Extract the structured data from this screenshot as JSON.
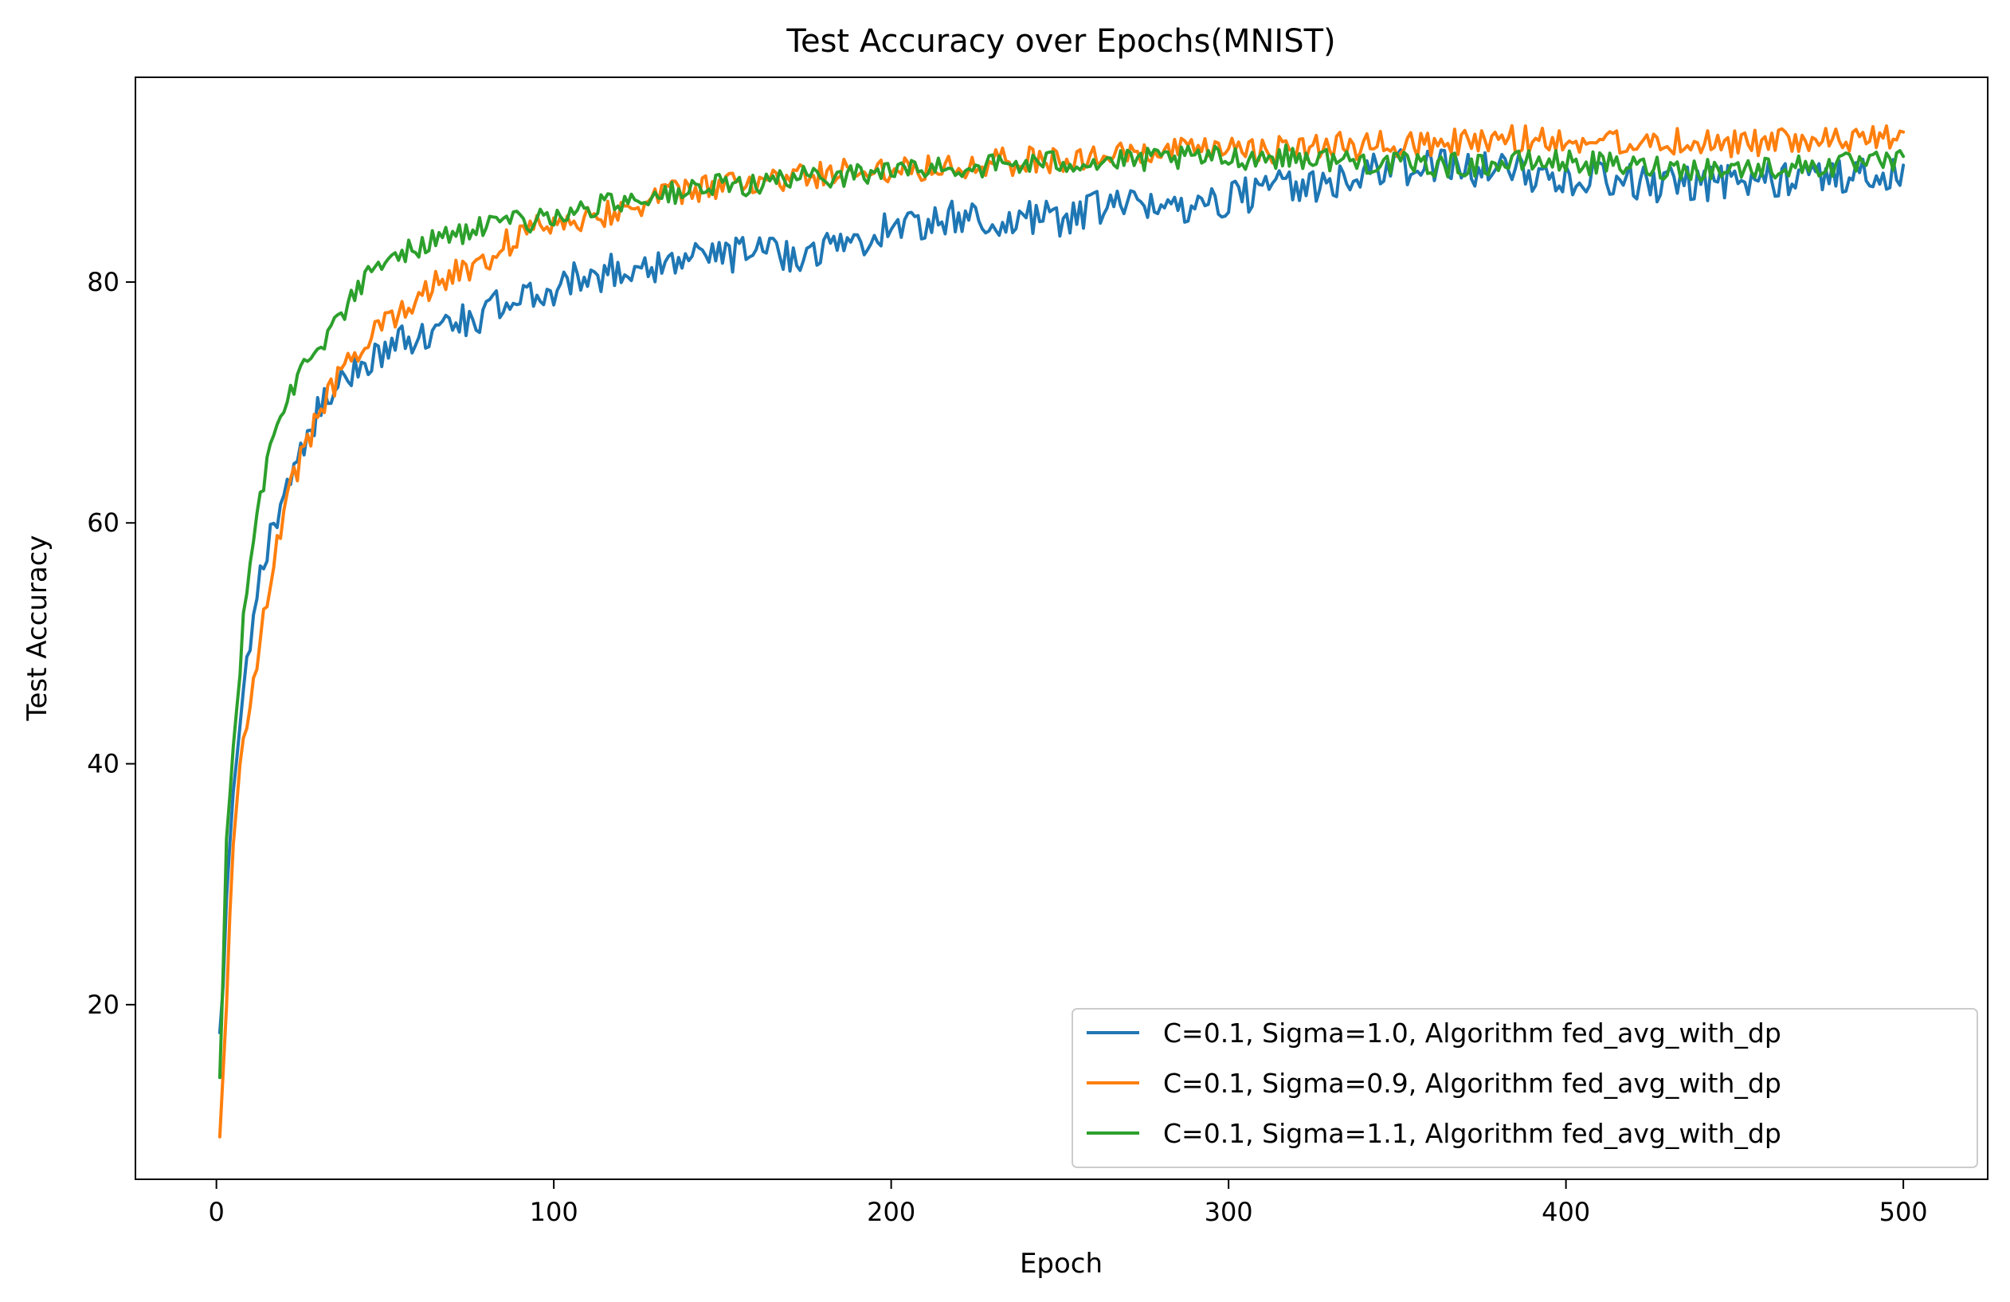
{
  "chart_data": {
    "type": "line",
    "title": "Test Accuracy over Epochs(MNIST)",
    "xlabel": "Epoch",
    "ylabel": "Test Accuracy",
    "xlim": [
      -24,
      525
    ],
    "ylim": [
      5.5,
      97
    ],
    "xticks": [
      0,
      100,
      200,
      300,
      400,
      500
    ],
    "yticks": [
      20,
      40,
      60,
      80
    ],
    "grid": false,
    "legend_position": "bottom-right",
    "series": [
      {
        "name": "C=0.1, Sigma=1.0, Algorithm fed_avg_with_dp",
        "color": "#1f77b4",
        "noise": 1.5,
        "points": [
          [
            1,
            17
          ],
          [
            2,
            22
          ],
          [
            3,
            28
          ],
          [
            4,
            33
          ],
          [
            5,
            37
          ],
          [
            6,
            40
          ],
          [
            7,
            43
          ],
          [
            8,
            46
          ],
          [
            10,
            50
          ],
          [
            12,
            54
          ],
          [
            15,
            58
          ],
          [
            18,
            61
          ],
          [
            22,
            64
          ],
          [
            26,
            67
          ],
          [
            30,
            69
          ],
          [
            35,
            71
          ],
          [
            40,
            72.5
          ],
          [
            45,
            73.5
          ],
          [
            50,
            74.5
          ],
          [
            55,
            75
          ],
          [
            60,
            75.5
          ],
          [
            70,
            76.5
          ],
          [
            80,
            77.5
          ],
          [
            90,
            78.5
          ],
          [
            100,
            79.5
          ],
          [
            110,
            80.5
          ],
          [
            120,
            81
          ],
          [
            130,
            81.5
          ],
          [
            140,
            82
          ],
          [
            150,
            82.2
          ],
          [
            160,
            82.5
          ],
          [
            170,
            82.3
          ],
          [
            180,
            82.8
          ],
          [
            190,
            83.5
          ],
          [
            200,
            84.5
          ],
          [
            210,
            85
          ],
          [
            220,
            85.3
          ],
          [
            230,
            85
          ],
          [
            240,
            85.2
          ],
          [
            250,
            85.3
          ],
          [
            260,
            86
          ],
          [
            270,
            86.3
          ],
          [
            280,
            86.2
          ],
          [
            290,
            86.5
          ],
          [
            300,
            87
          ],
          [
            310,
            87.5
          ],
          [
            320,
            88
          ],
          [
            330,
            88.3
          ],
          [
            340,
            89
          ],
          [
            350,
            89.5
          ],
          [
            360,
            89.5
          ],
          [
            370,
            89.5
          ],
          [
            380,
            89.3
          ],
          [
            390,
            89
          ],
          [
            400,
            88.8
          ],
          [
            410,
            88.5
          ],
          [
            420,
            88.3
          ],
          [
            430,
            88
          ],
          [
            440,
            88.2
          ],
          [
            450,
            88.4
          ],
          [
            460,
            88.5
          ],
          [
            470,
            88.8
          ],
          [
            480,
            89
          ],
          [
            490,
            88.8
          ],
          [
            500,
            89
          ]
        ]
      },
      {
        "name": "C=0.1, Sigma=0.9, Algorithm fed_avg_with_dp",
        "color": "#ff7f0e",
        "noise": 1.2,
        "points": [
          [
            1,
            9.5
          ],
          [
            2,
            14
          ],
          [
            3,
            20
          ],
          [
            4,
            27
          ],
          [
            5,
            33
          ],
          [
            6,
            37
          ],
          [
            7,
            40
          ],
          [
            8,
            42
          ],
          [
            10,
            45
          ],
          [
            12,
            49
          ],
          [
            15,
            54
          ],
          [
            18,
            58
          ],
          [
            22,
            63
          ],
          [
            26,
            66
          ],
          [
            30,
            69
          ],
          [
            35,
            71.5
          ],
          [
            40,
            73.5
          ],
          [
            45,
            75
          ],
          [
            50,
            76.5
          ],
          [
            55,
            78
          ],
          [
            60,
            79
          ],
          [
            70,
            80.5
          ],
          [
            80,
            82
          ],
          [
            90,
            84
          ],
          [
            100,
            85
          ],
          [
            110,
            85.5
          ],
          [
            120,
            86
          ],
          [
            130,
            87
          ],
          [
            140,
            87.5
          ],
          [
            150,
            88
          ],
          [
            160,
            88.3
          ],
          [
            170,
            88.5
          ],
          [
            180,
            89
          ],
          [
            190,
            89.2
          ],
          [
            200,
            89.5
          ],
          [
            210,
            89.6
          ],
          [
            220,
            89.8
          ],
          [
            230,
            90
          ],
          [
            240,
            90
          ],
          [
            250,
            90.2
          ],
          [
            260,
            90.3
          ],
          [
            270,
            90.5
          ],
          [
            280,
            90.7
          ],
          [
            290,
            90.8
          ],
          [
            300,
            91
          ],
          [
            310,
            91
          ],
          [
            320,
            91
          ],
          [
            330,
            91.2
          ],
          [
            340,
            91.3
          ],
          [
            350,
            91.5
          ],
          [
            360,
            91.5
          ],
          [
            370,
            91.6
          ],
          [
            380,
            91.8
          ],
          [
            390,
            91.8
          ],
          [
            400,
            91.8
          ],
          [
            410,
            91.7
          ],
          [
            420,
            91.7
          ],
          [
            430,
            91.7
          ],
          [
            440,
            91.6
          ],
          [
            450,
            91.6
          ],
          [
            460,
            91.6
          ],
          [
            470,
            91.6
          ],
          [
            480,
            91.7
          ],
          [
            490,
            91.8
          ],
          [
            500,
            92
          ]
        ]
      },
      {
        "name": "C=0.1, Sigma=1.1, Algorithm fed_avg_with_dp",
        "color": "#2ca02c",
        "noise": 1.0,
        "points": [
          [
            1,
            14
          ],
          [
            2,
            23
          ],
          [
            3,
            34
          ],
          [
            4,
            38
          ],
          [
            5,
            41
          ],
          [
            6,
            44
          ],
          [
            7,
            48
          ],
          [
            8,
            52
          ],
          [
            10,
            57
          ],
          [
            12,
            61
          ],
          [
            15,
            65
          ],
          [
            18,
            68
          ],
          [
            22,
            71
          ],
          [
            26,
            73
          ],
          [
            30,
            74.5
          ],
          [
            35,
            76.5
          ],
          [
            40,
            78.5
          ],
          [
            45,
            80.5
          ],
          [
            50,
            81.5
          ],
          [
            55,
            82.5
          ],
          [
            60,
            83
          ],
          [
            70,
            84
          ],
          [
            80,
            84.5
          ],
          [
            90,
            85
          ],
          [
            100,
            85.5
          ],
          [
            110,
            86
          ],
          [
            120,
            86.8
          ],
          [
            130,
            87.2
          ],
          [
            140,
            87.5
          ],
          [
            150,
            88
          ],
          [
            160,
            88.2
          ],
          [
            170,
            88.5
          ],
          [
            180,
            88.8
          ],
          [
            190,
            89
          ],
          [
            200,
            89.2
          ],
          [
            210,
            89.4
          ],
          [
            220,
            89.5
          ],
          [
            230,
            89.7
          ],
          [
            240,
            89.8
          ],
          [
            250,
            90
          ],
          [
            260,
            90
          ],
          [
            270,
            90
          ],
          [
            280,
            90.2
          ],
          [
            290,
            90.3
          ],
          [
            300,
            90.3
          ],
          [
            310,
            90.4
          ],
          [
            320,
            90.4
          ],
          [
            330,
            90.2
          ],
          [
            340,
            90
          ],
          [
            350,
            89.8
          ],
          [
            360,
            89.7
          ],
          [
            370,
            89.7
          ],
          [
            380,
            89.8
          ],
          [
            390,
            90
          ],
          [
            400,
            90
          ],
          [
            410,
            89.8
          ],
          [
            420,
            89.6
          ],
          [
            430,
            89.5
          ],
          [
            440,
            89.4
          ],
          [
            450,
            89.4
          ],
          [
            460,
            89.5
          ],
          [
            470,
            89.6
          ],
          [
            480,
            89.7
          ],
          [
            490,
            89.8
          ],
          [
            500,
            90
          ]
        ]
      }
    ]
  }
}
